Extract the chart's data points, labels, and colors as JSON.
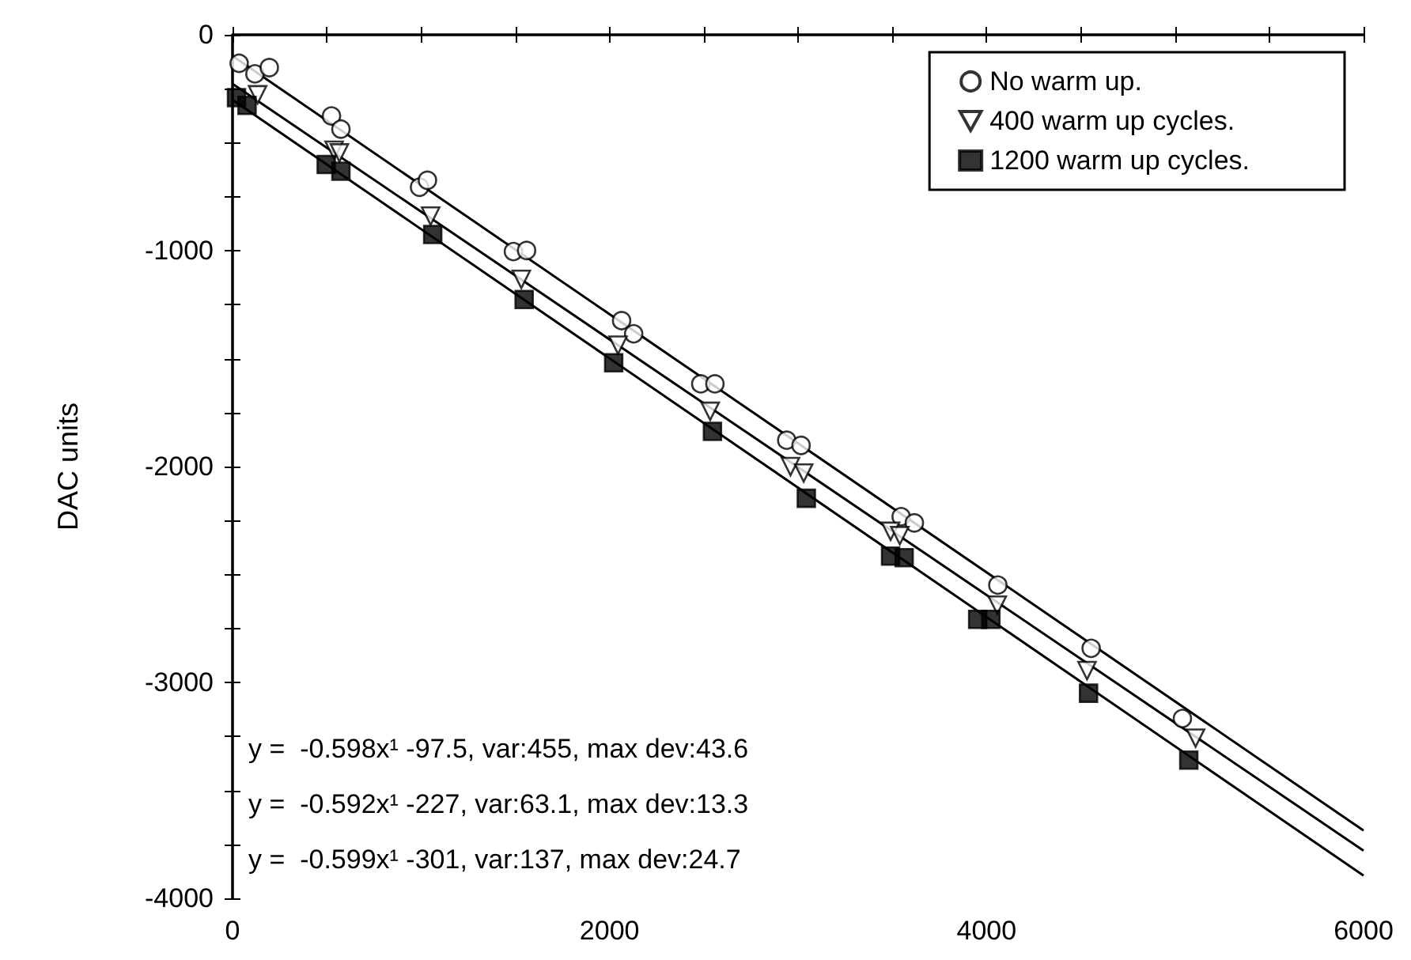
{
  "chart_data": {
    "type": "scatter",
    "ylabel": "DAC units",
    "xlim": [
      0,
      6000
    ],
    "ylim": [
      -4000,
      0
    ],
    "xticks": [
      0,
      {
        "value": 500,
        "label": null
      },
      {
        "value": 1000,
        "label": null
      },
      {
        "value": 1500,
        "label": null
      },
      2000,
      {
        "value": 2500,
        "label": null
      },
      {
        "value": 3000,
        "label": null
      },
      {
        "value": 3500,
        "label": null
      },
      4000,
      {
        "value": 4500,
        "label": null
      },
      {
        "value": 5000,
        "label": null
      },
      {
        "value": 5500,
        "label": null
      },
      6000
    ],
    "yticks": [
      -4000,
      {
        "value": -3750,
        "label": null
      },
      {
        "value": -3500,
        "label": null
      },
      {
        "value": -3250,
        "label": null
      },
      -3000,
      {
        "value": -2750,
        "label": null
      },
      {
        "value": -2500,
        "label": null
      },
      {
        "value": -2250,
        "label": null
      },
      -2000,
      {
        "value": -1750,
        "label": null
      },
      {
        "value": -1500,
        "label": null
      },
      {
        "value": -1250,
        "label": null
      },
      -1000,
      {
        "value": -750,
        "label": null
      },
      {
        "value": -500,
        "label": null
      },
      {
        "value": -250,
        "label": null
      },
      0
    ],
    "grid": false,
    "legend": "top right",
    "series": [
      {
        "name": "No warm up.",
        "marker": "circle",
        "color": "#000000",
        "x": [
          35,
          119,
          195,
          525,
          575,
          992,
          1034,
          1490,
          1560,
          2064,
          2128,
          2484,
          2559,
          2940,
          3016,
          3547,
          3617,
          4060,
          4555,
          5039
        ],
        "values": [
          -132,
          -181,
          -152,
          -376,
          -437,
          -706,
          -674,
          -1004,
          -999,
          -1324,
          -1385,
          -1617,
          -1617,
          -1878,
          -1902,
          -2232,
          -2261,
          -2549,
          -2842,
          -3167
        ]
      },
      {
        "name": "400 warm up cycles.",
        "marker": "triangle",
        "color": "#000000",
        "x": [
          133,
          539,
          567,
          1051,
          1532,
          2045,
          2534,
          2960,
          3030,
          3491,
          3540,
          4057,
          4533,
          5109
        ],
        "values": [
          -278,
          -535,
          -547,
          -840,
          -1133,
          -1438,
          -1744,
          -2000,
          -2030,
          -2300,
          -2320,
          -2642,
          -2945,
          -3258
        ]
      },
      {
        "name": "1200 warm up cycles.",
        "marker": "square",
        "color": "#000000",
        "x": [
          21,
          77,
          497,
          575,
          1062,
          1547,
          2022,
          2546,
          3044,
          3491,
          3563,
          3953,
          4023,
          4541,
          5073
        ],
        "values": [
          -291,
          -327,
          -601,
          -632,
          -925,
          -1226,
          -1519,
          -1837,
          -2147,
          -2415,
          -2422,
          -2708,
          -2708,
          -3050,
          -3360
        ]
      },
      {
        "type": "line",
        "marker": "none",
        "line_style": "solid",
        "color": "#000000",
        "x": [
          0,
          6000
        ],
        "values": [
          -98,
          -3686
        ]
      },
      {
        "type": "line",
        "marker": "none",
        "line_style": "solid",
        "color": "#000000",
        "x": [
          0,
          6000
        ],
        "values": [
          -227,
          -3779
        ]
      },
      {
        "type": "line",
        "marker": "none",
        "line_style": "solid",
        "color": "#000000",
        "x": [
          0,
          6000
        ],
        "values": [
          -301,
          -3895
        ]
      }
    ],
    "annotations": [
      "y =  -0.598x¹ -97.5, var:455, max dev:43.6",
      "y =  -0.592x¹ -227, var:63.1, max dev:13.3",
      "y =  -0.599x¹ -301, var:137, max dev:24.7"
    ]
  }
}
